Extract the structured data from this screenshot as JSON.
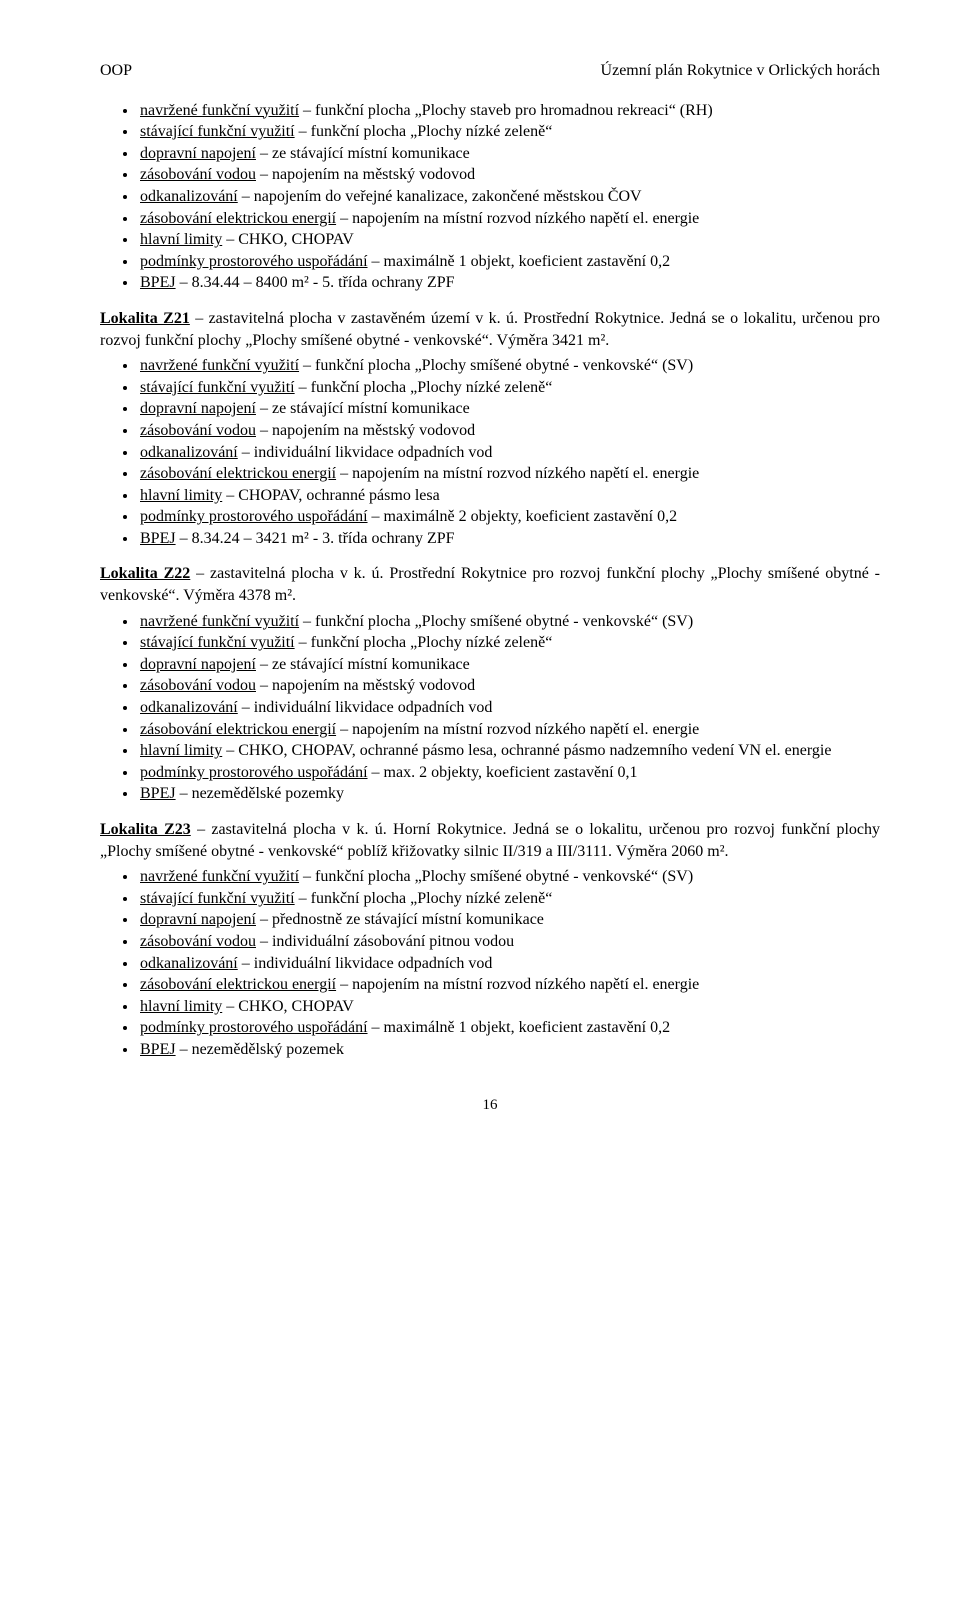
{
  "header": {
    "left": "OOP",
    "right": "Územní plán Rokytnice v Orlických horách"
  },
  "block1": {
    "items": [
      [
        {
          "t": "navržené funkční využití",
          "u": true
        },
        {
          "t": " – funkční plocha „Plochy staveb pro hromadnou rekreaci“ (RH)"
        }
      ],
      [
        {
          "t": "stávající funkční využití",
          "u": true
        },
        {
          "t": " – funkční plocha „Plochy nízké zeleně“"
        }
      ],
      [
        {
          "t": "dopravní napojení",
          "u": true
        },
        {
          "t": " – ze stávající místní komunikace"
        }
      ],
      [
        {
          "t": "zásobování vodou",
          "u": true
        },
        {
          "t": " – napojením na městský vodovod"
        }
      ],
      [
        {
          "t": "odkanalizování",
          "u": true
        },
        {
          "t": " – napojením do veřejné kanalizace, zakončené městskou ČOV"
        }
      ],
      [
        {
          "t": "zásobování elektrickou energií",
          "u": true
        },
        {
          "t": " – napojením na místní rozvod nízkého napětí el. energie"
        }
      ],
      [
        {
          "t": "hlavní limity",
          "u": true
        },
        {
          "t": " – CHKO, CHOPAV"
        }
      ],
      [
        {
          "t": "podmínky prostorového uspořádání",
          "u": true
        },
        {
          "t": " – maximálně 1 objekt, koeficient zastavění 0,2"
        }
      ],
      [
        {
          "t": "BPEJ",
          "u": true
        },
        {
          "t": " – 8.34.44 – 8400 m² - 5. třída ochrany ZPF"
        }
      ]
    ]
  },
  "para21": [
    {
      "t": "Lokalita Z21",
      "b": true,
      "u": true
    },
    {
      "t": " – zastavitelná plocha v zastavěném území v k. ú. Prostřední Rokytnice. Jedná se o lokalitu, určenou pro rozvoj funkční plochy „Plochy smíšené obytné - venkovské“. Výměra 3421 m²."
    }
  ],
  "block21": {
    "items": [
      [
        {
          "t": "navržené funkční využití",
          "u": true
        },
        {
          "t": " – funkční plocha „Plochy smíšené obytné - venkovské“ (SV)"
        }
      ],
      [
        {
          "t": "stávající funkční využití",
          "u": true
        },
        {
          "t": " – funkční plocha „Plochy nízké zeleně“"
        }
      ],
      [
        {
          "t": "dopravní napojení",
          "u": true
        },
        {
          "t": " – ze stávající místní komunikace"
        }
      ],
      [
        {
          "t": "zásobování vodou",
          "u": true
        },
        {
          "t": " – napojením na městský vodovod"
        }
      ],
      [
        {
          "t": "odkanalizování",
          "u": true
        },
        {
          "t": " – individuální likvidace odpadních vod"
        }
      ],
      [
        {
          "t": "zásobování elektrickou energií",
          "u": true
        },
        {
          "t": " – napojením na místní rozvod nízkého napětí el. energie"
        }
      ],
      [
        {
          "t": "hlavní limity",
          "u": true
        },
        {
          "t": " – CHOPAV, ochranné pásmo lesa"
        }
      ],
      [
        {
          "t": "podmínky prostorového uspořádání",
          "u": true
        },
        {
          "t": " – maximálně 2 objekty, koeficient zastavění 0,2"
        }
      ],
      [
        {
          "t": "BPEJ",
          "u": true
        },
        {
          "t": " – 8.34.24 – 3421 m² - 3. třída ochrany ZPF"
        }
      ]
    ]
  },
  "para22": [
    {
      "t": "Lokalita Z22",
      "b": true,
      "u": true
    },
    {
      "t": " – zastavitelná plocha v k. ú. Prostřední Rokytnice pro rozvoj funkční plochy „Plochy smíšené obytné - venkovské“. Výměra 4378 m²."
    }
  ],
  "block22": {
    "items": [
      [
        {
          "t": "navržené funkční využití",
          "u": true
        },
        {
          "t": " – funkční plocha „Plochy smíšené obytné - venkovské“ (SV)"
        }
      ],
      [
        {
          "t": "stávající funkční využití",
          "u": true
        },
        {
          "t": " – funkční plocha „Plochy nízké zeleně“"
        }
      ],
      [
        {
          "t": "dopravní napojení",
          "u": true
        },
        {
          "t": " – ze stávající místní komunikace"
        }
      ],
      [
        {
          "t": "zásobování vodou",
          "u": true
        },
        {
          "t": " – napojením na městský vodovod"
        }
      ],
      [
        {
          "t": "odkanalizování",
          "u": true
        },
        {
          "t": " – individuální likvidace odpadních vod"
        }
      ],
      [
        {
          "t": "zásobování elektrickou energií",
          "u": true
        },
        {
          "t": " – napojením na místní rozvod nízkého napětí el. energie"
        }
      ],
      [
        {
          "t": "hlavní limity",
          "u": true
        },
        {
          "t": " – CHKO, CHOPAV, ochranné pásmo lesa, ochranné pásmo nadzemního vedení VN el. energie"
        }
      ],
      [
        {
          "t": "podmínky prostorového uspořádání",
          "u": true
        },
        {
          "t": " – max. 2 objekty, koeficient zastavění 0,1"
        }
      ],
      [
        {
          "t": "BPEJ",
          "u": true
        },
        {
          "t": " – nezemědělské pozemky"
        }
      ]
    ]
  },
  "para23": [
    {
      "t": "Lokalita Z23",
      "b": true,
      "u": true
    },
    {
      "t": " – zastavitelná plocha v k. ú. Horní Rokytnice. Jedná se o lokalitu, určenou pro rozvoj funkční plochy „Plochy smíšené obytné - venkovské“ poblíž křižovatky silnic II/319 a III/3111. Výměra 2060 m²."
    }
  ],
  "block23": {
    "items": [
      [
        {
          "t": "navržené funkční využití",
          "u": true
        },
        {
          "t": " – funkční plocha „Plochy smíšené obytné - venkovské“ (SV)"
        }
      ],
      [
        {
          "t": "stávající funkční využití",
          "u": true
        },
        {
          "t": " – funkční plocha „Plochy nízké zeleně“"
        }
      ],
      [
        {
          "t": "dopravní napojení",
          "u": true
        },
        {
          "t": " – přednostně ze stávající místní komunikace"
        }
      ],
      [
        {
          "t": "zásobování vodou",
          "u": true
        },
        {
          "t": " – individuální zásobování pitnou vodou"
        }
      ],
      [
        {
          "t": "odkanalizování",
          "u": true
        },
        {
          "t": " – individuální likvidace odpadních vod"
        }
      ],
      [
        {
          "t": "zásobování elektrickou energií",
          "u": true
        },
        {
          "t": " – napojením na místní rozvod nízkého napětí el. energie"
        }
      ],
      [
        {
          "t": "hlavní limity",
          "u": true
        },
        {
          "t": " – CHKO, CHOPAV"
        }
      ],
      [
        {
          "t": "podmínky prostorového uspořádání",
          "u": true
        },
        {
          "t": " – maximálně 1 objekt, koeficient zastavění 0,2"
        }
      ],
      [
        {
          "t": "BPEJ",
          "u": true
        },
        {
          "t": " – nezemědělský pozemek"
        }
      ]
    ]
  },
  "footer": {
    "page": "16"
  }
}
